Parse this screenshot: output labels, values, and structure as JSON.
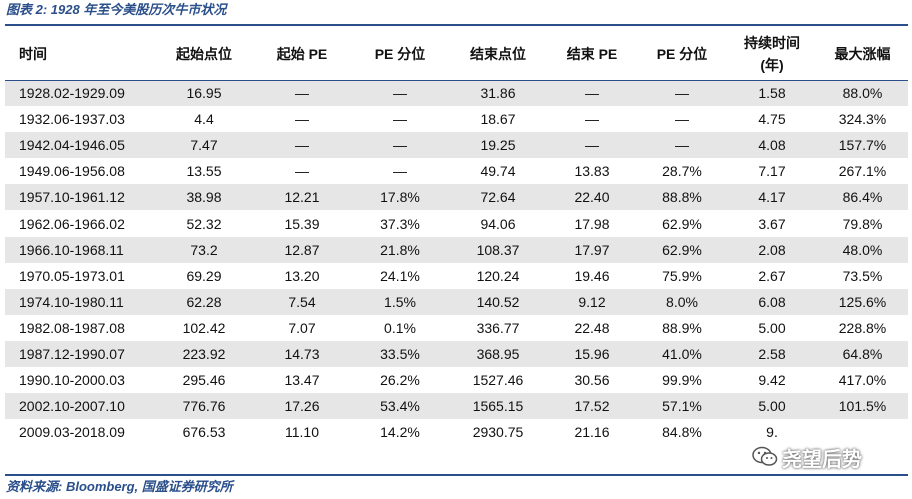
{
  "caption": "图表 2:  1928 年至今美股历次牛市状况",
  "headers": {
    "period": "时间",
    "start_level": "起始点位",
    "start_pe": "起始 PE",
    "start_pe_pct": "PE 分位",
    "end_level": "结束点位",
    "end_pe": "结束 PE",
    "end_pe_pct": "PE 分位",
    "duration_line1": "持续时间",
    "duration_line2": "(年)",
    "max_gain": "最大涨幅"
  },
  "rows": [
    {
      "period": "1928.02-1929.09",
      "start_level": "16.95",
      "start_pe": "—",
      "start_pe_pct": "—",
      "end_level": "31.86",
      "end_pe": "—",
      "end_pe_pct": "—",
      "duration": "1.58",
      "max_gain": "88.0%"
    },
    {
      "period": "1932.06-1937.03",
      "start_level": "4.4",
      "start_pe": "—",
      "start_pe_pct": "—",
      "end_level": "18.67",
      "end_pe": "—",
      "end_pe_pct": "—",
      "duration": "4.75",
      "max_gain": "324.3%"
    },
    {
      "period": "1942.04-1946.05",
      "start_level": "7.47",
      "start_pe": "—",
      "start_pe_pct": "—",
      "end_level": "19.25",
      "end_pe": "—",
      "end_pe_pct": "—",
      "duration": "4.08",
      "max_gain": "157.7%"
    },
    {
      "period": "1949.06-1956.08",
      "start_level": "13.55",
      "start_pe": "—",
      "start_pe_pct": "—",
      "end_level": "49.74",
      "end_pe": "13.83",
      "end_pe_pct": "28.7%",
      "duration": "7.17",
      "max_gain": "267.1%"
    },
    {
      "period": "1957.10-1961.12",
      "start_level": "38.98",
      "start_pe": "12.21",
      "start_pe_pct": "17.8%",
      "end_level": "72.64",
      "end_pe": "22.40",
      "end_pe_pct": "88.8%",
      "duration": "4.17",
      "max_gain": "86.4%"
    },
    {
      "period": "1962.06-1966.02",
      "start_level": "52.32",
      "start_pe": "15.39",
      "start_pe_pct": "37.3%",
      "end_level": "94.06",
      "end_pe": "17.98",
      "end_pe_pct": "62.9%",
      "duration": "3.67",
      "max_gain": "79.8%"
    },
    {
      "period": "1966.10-1968.11",
      "start_level": "73.2",
      "start_pe": "12.87",
      "start_pe_pct": "21.8%",
      "end_level": "108.37",
      "end_pe": "17.97",
      "end_pe_pct": "62.9%",
      "duration": "2.08",
      "max_gain": "48.0%"
    },
    {
      "period": "1970.05-1973.01",
      "start_level": "69.29",
      "start_pe": "13.20",
      "start_pe_pct": "24.1%",
      "end_level": "120.24",
      "end_pe": "19.46",
      "end_pe_pct": "75.9%",
      "duration": "2.67",
      "max_gain": "73.5%"
    },
    {
      "period": "1974.10-1980.11",
      "start_level": "62.28",
      "start_pe": "7.54",
      "start_pe_pct": "1.5%",
      "end_level": "140.52",
      "end_pe": "9.12",
      "end_pe_pct": "8.0%",
      "duration": "6.08",
      "max_gain": "125.6%"
    },
    {
      "period": "1982.08-1987.08",
      "start_level": "102.42",
      "start_pe": "7.07",
      "start_pe_pct": "0.1%",
      "end_level": "336.77",
      "end_pe": "22.48",
      "end_pe_pct": "88.9%",
      "duration": "5.00",
      "max_gain": "228.8%"
    },
    {
      "period": "1987.12-1990.07",
      "start_level": "223.92",
      "start_pe": "14.73",
      "start_pe_pct": "33.5%",
      "end_level": "368.95",
      "end_pe": "15.96",
      "end_pe_pct": "41.0%",
      "duration": "2.58",
      "max_gain": "64.8%"
    },
    {
      "period": "1990.10-2000.03",
      "start_level": "295.46",
      "start_pe": "13.47",
      "start_pe_pct": "26.2%",
      "end_level": "1527.46",
      "end_pe": "30.56",
      "end_pe_pct": "99.9%",
      "duration": "9.42",
      "max_gain": "417.0%"
    },
    {
      "period": "2002.10-2007.10",
      "start_level": "776.76",
      "start_pe": "17.26",
      "start_pe_pct": "53.4%",
      "end_level": "1565.15",
      "end_pe": "17.52",
      "end_pe_pct": "57.1%",
      "duration": "5.00",
      "max_gain": "101.5%"
    },
    {
      "period": "2009.03-2018.09",
      "start_level": "676.53",
      "start_pe": "11.10",
      "start_pe_pct": "14.2%",
      "end_level": "2930.75",
      "end_pe": "21.16",
      "end_pe_pct": "84.8%",
      "duration": "9.",
      "max_gain": ""
    }
  ],
  "source": "资料来源:  Bloomberg,  国盛证券研究所",
  "watermark": {
    "icon": "wechat-icon",
    "text": "尧望后势"
  },
  "colors": {
    "accent": "#2a4f8a",
    "stripe": "#e6e6e6"
  }
}
